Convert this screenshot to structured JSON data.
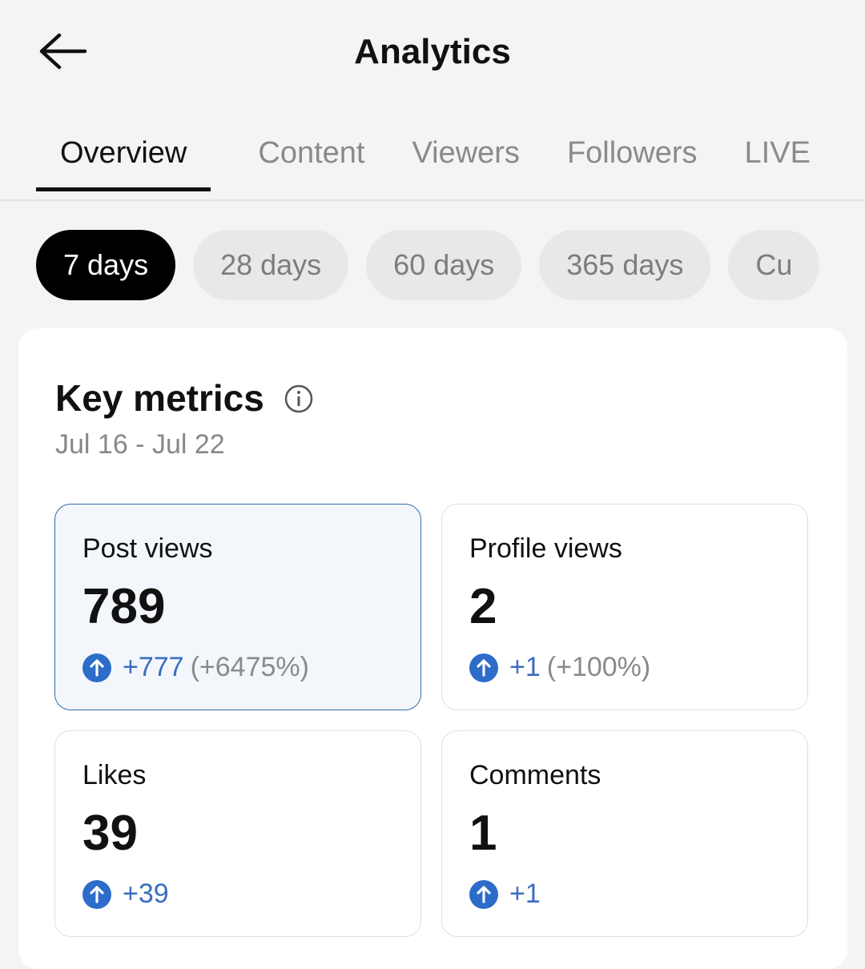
{
  "header": {
    "title": "Analytics"
  },
  "tabs": [
    "Overview",
    "Content",
    "Viewers",
    "Followers",
    "LIVE"
  ],
  "ranges": [
    "7 days",
    "28 days",
    "60 days",
    "365 days",
    "Cu"
  ],
  "card": {
    "title": "Key metrics",
    "date_range": "Jul 16 - Jul 22",
    "metrics": [
      {
        "label": "Post views",
        "value": 789,
        "change": "+777",
        "percent": "(+6475%)"
      },
      {
        "label": "Profile views",
        "value": 2,
        "change": "+1",
        "percent": "(+100%)"
      },
      {
        "label": "Likes",
        "value": 39,
        "change": "+39"
      },
      {
        "label": "Comments",
        "value": 1,
        "change": "+1"
      }
    ]
  }
}
